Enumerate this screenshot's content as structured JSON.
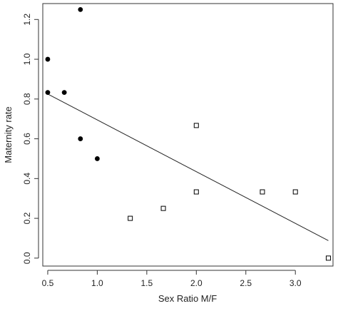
{
  "chart_data": {
    "type": "scatter",
    "title": "",
    "xlabel": "Sex Ratio M/F",
    "ylabel": "Maternity rate",
    "xlim": [
      0.45,
      3.38
    ],
    "ylim": [
      -0.04,
      1.28
    ],
    "x_ticks": [
      "0.5",
      "1.0",
      "1.5",
      "2.0",
      "2.5",
      "3.0"
    ],
    "x_tick_values": [
      0.5,
      1.0,
      1.5,
      2.0,
      2.5,
      3.0
    ],
    "y_ticks": [
      "0.0",
      "0.2",
      "0.4",
      "0.6",
      "0.8",
      "1.0",
      "1.2"
    ],
    "y_tick_values": [
      0.0,
      0.2,
      0.4,
      0.6,
      0.8,
      1.0,
      1.2
    ],
    "grid": false,
    "legend": "none",
    "series": [
      {
        "marker": "filled-circle",
        "color": "#000000",
        "points": [
          {
            "x": 0.83,
            "y": 1.25
          },
          {
            "x": 0.5,
            "y": 1.0
          },
          {
            "x": 0.5,
            "y": 0.833
          },
          {
            "x": 0.667,
            "y": 0.833
          },
          {
            "x": 0.83,
            "y": 0.6
          },
          {
            "x": 1.0,
            "y": 0.5
          }
        ]
      },
      {
        "marker": "open-square",
        "color": "#000000",
        "points": [
          {
            "x": 1.333,
            "y": 0.2
          },
          {
            "x": 1.667,
            "y": 0.25
          },
          {
            "x": 2.0,
            "y": 0.667
          },
          {
            "x": 2.0,
            "y": 0.333
          },
          {
            "x": 2.667,
            "y": 0.333
          },
          {
            "x": 3.0,
            "y": 0.333
          },
          {
            "x": 3.333,
            "y": 0.0
          }
        ]
      }
    ],
    "trend_line": {
      "type": "linear",
      "x1": 0.5,
      "y1": 0.825,
      "x2": 3.333,
      "y2": 0.088
    }
  }
}
